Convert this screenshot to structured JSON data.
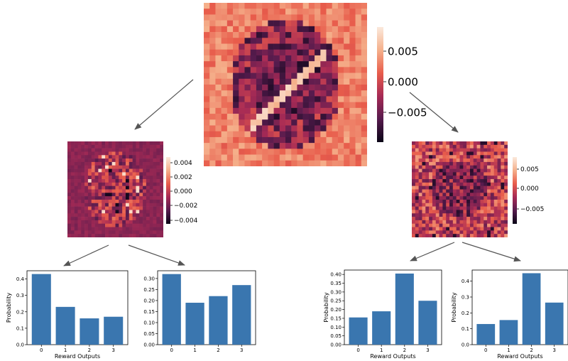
{
  "heatmaps": [
    {
      "id": "top",
      "ticks": [
        "0.005",
        "0.000",
        "−0.005"
      ]
    },
    {
      "id": "left",
      "ticks": [
        "0.004",
        "0.002",
        "0.000",
        "−0.002",
        "−0.004"
      ]
    },
    {
      "id": "right",
      "ticks": [
        "0.005",
        "0.000",
        "−0.005"
      ]
    }
  ],
  "chart_data": [
    {
      "type": "bar",
      "categories": [
        "0",
        "1",
        "2",
        "3"
      ],
      "values": [
        0.43,
        0.23,
        0.16,
        0.17
      ],
      "xlabel": "Reward Outputs",
      "ylabel": "Probability",
      "ylim": [
        0,
        0.45
      ],
      "yticks": [
        "0.0",
        "0.1",
        "0.2",
        "0.3",
        "0.4"
      ],
      "color": "#3a76af"
    },
    {
      "type": "bar",
      "categories": [
        "0",
        "1",
        "2",
        "3"
      ],
      "values": [
        0.32,
        0.19,
        0.22,
        0.27
      ],
      "xlabel": "",
      "ylabel": "",
      "ylim": [
        0,
        0.335
      ],
      "yticks": [
        "0.00",
        "0.05",
        "0.10",
        "0.15",
        "0.20",
        "0.25",
        "0.30"
      ],
      "color": "#3a76af"
    },
    {
      "type": "bar",
      "categories": [
        "0",
        "1",
        "2",
        "3"
      ],
      "values": [
        0.155,
        0.19,
        0.405,
        0.25
      ],
      "xlabel": "Reward Outputs",
      "ylabel": "Probability",
      "ylim": [
        0,
        0.425
      ],
      "yticks": [
        "0.00",
        "0.05",
        "0.10",
        "0.15",
        "0.20",
        "0.25",
        "0.30",
        "0.35",
        "0.40"
      ],
      "color": "#3a76af"
    },
    {
      "type": "bar",
      "categories": [
        "0",
        "1",
        "2",
        "3"
      ],
      "values": [
        0.13,
        0.155,
        0.45,
        0.265
      ],
      "xlabel": "Reward Outputs",
      "ylabel": "Probability",
      "ylim": [
        0,
        0.47
      ],
      "yticks": [
        "0.0",
        "0.1",
        "0.2",
        "0.3",
        "0.4"
      ],
      "color": "#3a76af"
    }
  ]
}
